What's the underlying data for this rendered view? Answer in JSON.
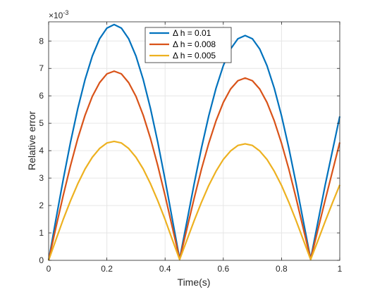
{
  "chart_data": {
    "type": "line",
    "xlabel": "Time(s)",
    "ylabel": "Relative error",
    "y_multiplier_base": "×10",
    "y_multiplier_exp": "-3",
    "xlim": [
      0,
      1
    ],
    "ylim": [
      0,
      8.7
    ],
    "xticks": [
      0,
      0.2,
      0.4,
      0.6,
      0.8,
      1
    ],
    "xtick_labels": [
      "0",
      "0.2",
      "0.4",
      "0.6",
      "0.8",
      "1"
    ],
    "yticks": [
      0,
      1,
      2,
      3,
      4,
      5,
      6,
      7,
      8
    ],
    "ytick_labels": [
      "0",
      "1",
      "2",
      "3",
      "4",
      "5",
      "6",
      "7",
      "8"
    ],
    "grid": true,
    "legend_position": "top-center",
    "series": [
      {
        "name": "Δ h = 0.01",
        "color": "#0072BD",
        "x": [
          0,
          0.025,
          0.05,
          0.075,
          0.1,
          0.125,
          0.15,
          0.175,
          0.2,
          0.225,
          0.25,
          0.275,
          0.3,
          0.325,
          0.35,
          0.375,
          0.4,
          0.425,
          0.45,
          0.475,
          0.5,
          0.525,
          0.55,
          0.575,
          0.6,
          0.625,
          0.65,
          0.675,
          0.7,
          0.725,
          0.75,
          0.775,
          0.8,
          0.825,
          0.85,
          0.875,
          0.9,
          0.925,
          0.95,
          0.975,
          1.0
        ],
        "y": [
          0,
          1.49,
          2.94,
          4.3,
          5.53,
          6.59,
          7.45,
          8.08,
          8.47,
          8.6,
          8.47,
          8.08,
          7.45,
          6.59,
          5.53,
          4.3,
          2.94,
          1.49,
          0.05,
          1.42,
          2.8,
          4.1,
          5.27,
          6.28,
          7.1,
          7.71,
          8.08,
          8.2,
          8.08,
          7.71,
          7.1,
          6.28,
          5.27,
          4.1,
          2.8,
          1.42,
          0.05,
          1.4,
          2.75,
          4.0,
          5.25
        ]
      },
      {
        "name": "Δ h = 0.008",
        "color": "#D95319",
        "x": [
          0,
          0.025,
          0.05,
          0.075,
          0.1,
          0.125,
          0.15,
          0.175,
          0.2,
          0.225,
          0.25,
          0.275,
          0.3,
          0.325,
          0.35,
          0.375,
          0.4,
          0.425,
          0.45,
          0.475,
          0.5,
          0.525,
          0.55,
          0.575,
          0.6,
          0.625,
          0.65,
          0.675,
          0.7,
          0.725,
          0.75,
          0.775,
          0.8,
          0.825,
          0.85,
          0.875,
          0.9,
          0.925,
          0.95,
          0.975,
          1.0
        ],
        "y": [
          0,
          1.2,
          2.36,
          3.45,
          4.44,
          5.29,
          5.98,
          6.48,
          6.8,
          6.9,
          6.8,
          6.48,
          5.98,
          5.29,
          4.44,
          3.45,
          2.36,
          1.2,
          0.04,
          1.15,
          2.27,
          3.33,
          4.27,
          5.09,
          5.76,
          6.25,
          6.55,
          6.65,
          6.55,
          6.25,
          5.76,
          5.09,
          4.27,
          3.33,
          2.27,
          1.15,
          0.04,
          1.12,
          2.2,
          3.25,
          4.3
        ]
      },
      {
        "name": "Δ h = 0.005",
        "color": "#EDB120",
        "x": [
          0,
          0.025,
          0.05,
          0.075,
          0.1,
          0.125,
          0.15,
          0.175,
          0.2,
          0.225,
          0.25,
          0.275,
          0.3,
          0.325,
          0.35,
          0.375,
          0.4,
          0.425,
          0.45,
          0.475,
          0.5,
          0.525,
          0.55,
          0.575,
          0.6,
          0.625,
          0.65,
          0.675,
          0.7,
          0.725,
          0.75,
          0.775,
          0.8,
          0.825,
          0.85,
          0.875,
          0.9,
          0.925,
          0.95,
          0.975,
          1.0
        ],
        "y": [
          0,
          0.75,
          1.49,
          2.17,
          2.79,
          3.33,
          3.76,
          4.08,
          4.28,
          4.34,
          4.28,
          4.08,
          3.76,
          3.33,
          2.79,
          2.17,
          1.49,
          0.75,
          0.03,
          0.74,
          1.45,
          2.12,
          2.73,
          3.25,
          3.68,
          3.99,
          4.19,
          4.25,
          4.19,
          3.99,
          3.68,
          3.25,
          2.73,
          2.12,
          1.45,
          0.74,
          0.03,
          0.72,
          1.42,
          2.1,
          2.75
        ]
      }
    ]
  }
}
